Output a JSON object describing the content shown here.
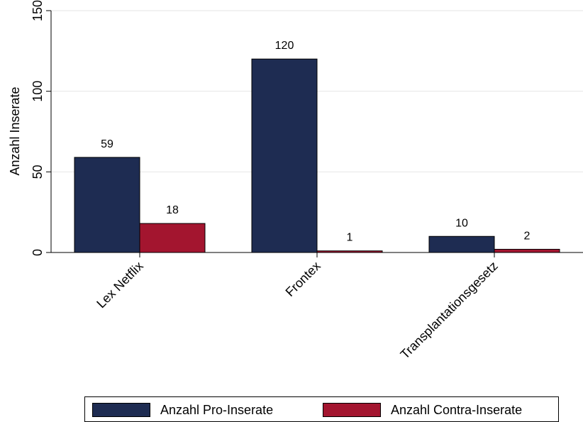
{
  "chart_data": {
    "type": "bar",
    "categories": [
      "Lex Netflix",
      "Frontex",
      "Transplantationsgesetz"
    ],
    "series": [
      {
        "name": "Anzahl Pro-Inserate",
        "values": [
          59,
          120,
          10
        ],
        "color": "#1e2c52"
      },
      {
        "name": "Anzahl Contra-Inserate",
        "values": [
          18,
          1,
          2
        ],
        "color": "#a3152f"
      }
    ],
    "data_labels": [
      [
        "59",
        "18"
      ],
      [
        "120",
        "1"
      ],
      [
        "10",
        "2"
      ]
    ],
    "ylabel": "Anzahl Inserate",
    "xlabel": "",
    "ylim": [
      0,
      150
    ],
    "yticks": [
      0,
      50,
      100,
      150
    ],
    "ytick_labels": [
      "0",
      "50",
      "100",
      "150"
    ],
    "grid": true,
    "legend_position": "bottom"
  },
  "legend": {
    "items": [
      {
        "label": "Anzahl Pro-Inserate",
        "color": "#1e2c52"
      },
      {
        "label": "Anzahl Contra-Inserate",
        "color": "#a3152f"
      }
    ]
  }
}
